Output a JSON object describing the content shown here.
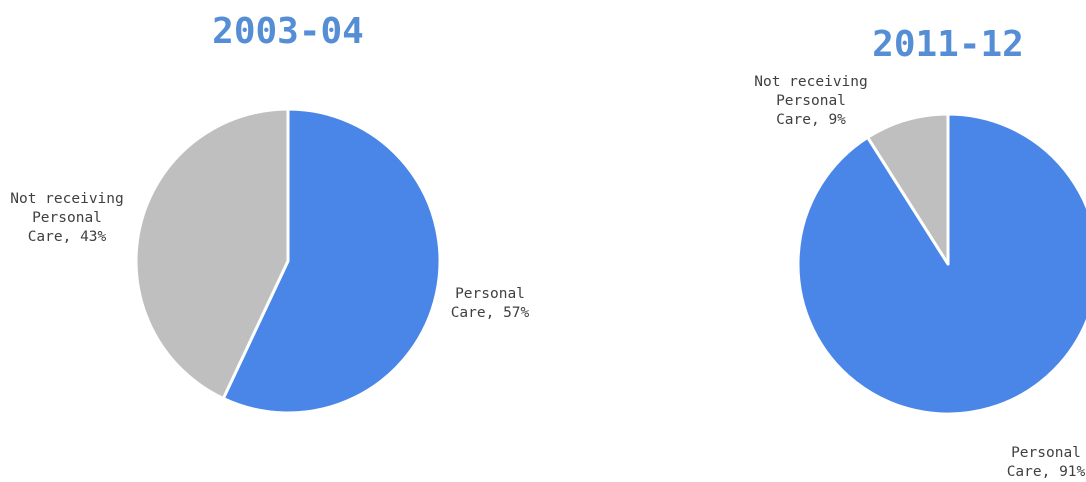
{
  "colors": {
    "personal_care": "#4a86e8",
    "not_receiving": "#bfbfbf",
    "title": "#558ed5",
    "text": "#404040"
  },
  "chart_data": [
    {
      "type": "pie",
      "title": "2003-04",
      "slices": [
        {
          "name": "Personal Care",
          "value": 57,
          "color": "#4a86e8",
          "label_lines": [
            "Personal",
            "Care, 57%"
          ]
        },
        {
          "name": "Not receiving Personal Care",
          "value": 43,
          "color": "#bfbfbf",
          "label_lines": [
            "Not receiving",
            "Personal",
            "Care, 43%"
          ]
        }
      ]
    },
    {
      "type": "pie",
      "title": "2011-12",
      "slices": [
        {
          "name": "Personal Care",
          "value": 91,
          "color": "#4a86e8",
          "label_lines": [
            "Personal",
            "Care, 91%"
          ]
        },
        {
          "name": "Not receiving Personal Care",
          "value": 9,
          "color": "#bfbfbf",
          "label_lines": [
            "Not receiving",
            "Personal",
            "Care, 9%"
          ]
        }
      ]
    }
  ]
}
